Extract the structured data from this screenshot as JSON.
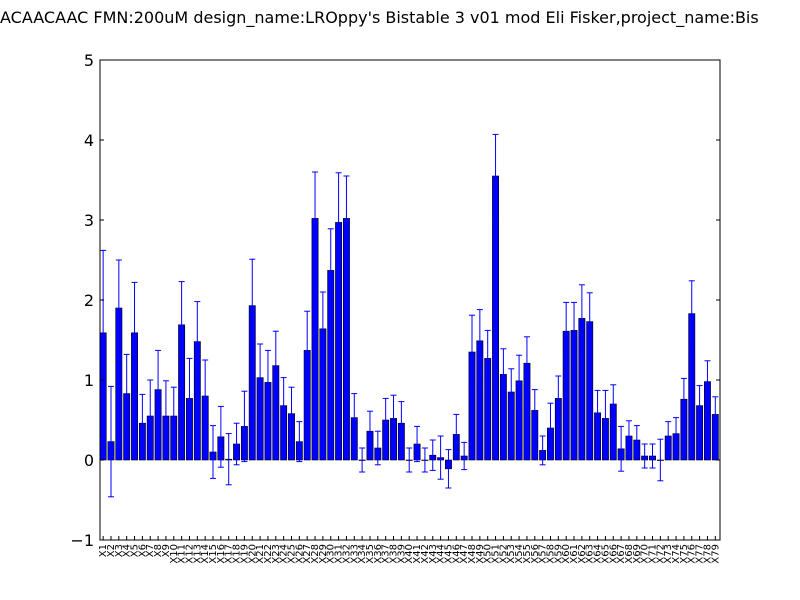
{
  "chart_data": {
    "type": "bar",
    "title": "ACAACAAC  FMN:200uM  design_name:LROppy's Bistable 3 v01 mod Eli Fisker,project_name:Bis",
    "xlabel": "",
    "ylabel": "",
    "ylim": [
      -1,
      5
    ],
    "yticks": [
      -1,
      0,
      1,
      2,
      3,
      4,
      5
    ],
    "grid": false,
    "bar_color": "#0000ff",
    "error_color": "#0000ff",
    "categories": [
      "X1",
      "X2",
      "X3",
      "X4",
      "X5",
      "X6",
      "X7",
      "X8",
      "X9",
      "X10",
      "X11",
      "X12",
      "X13",
      "X14",
      "X15",
      "X16",
      "X17",
      "X18",
      "X19",
      "X20",
      "X21",
      "X22",
      "X23",
      "X24",
      "X25",
      "X26",
      "X27",
      "X28",
      "X29",
      "X30",
      "X31",
      "X32",
      "X33",
      "X34",
      "X35",
      "X36",
      "X37",
      "X38",
      "X39",
      "X40",
      "X41",
      "X42",
      "X43",
      "X44",
      "X45",
      "X46",
      "X47",
      "X48",
      "X49",
      "X50",
      "X51",
      "X52",
      "X53",
      "X54",
      "X55",
      "X56",
      "X57",
      "X58",
      "X59",
      "X60",
      "X61",
      "X62",
      "X63",
      "X64",
      "X65",
      "X66",
      "X67",
      "X68",
      "X69",
      "X70",
      "X71",
      "X72",
      "X73",
      "X74",
      "X75",
      "X76",
      "X77",
      "X78",
      "X79"
    ],
    "values": [
      1.59,
      0.23,
      1.9,
      0.83,
      1.59,
      0.46,
      0.55,
      0.88,
      0.55,
      0.55,
      1.69,
      0.77,
      1.48,
      0.8,
      0.1,
      0.29,
      0.01,
      0.2,
      0.42,
      1.93,
      1.03,
      0.97,
      1.18,
      0.68,
      0.58,
      0.23,
      1.37,
      3.02,
      1.64,
      2.37,
      2.97,
      3.02,
      0.53,
      0.0,
      0.36,
      0.15,
      0.5,
      0.52,
      0.46,
      0.0,
      0.2,
      0.0,
      0.06,
      0.03,
      -0.11,
      0.32,
      0.05,
      1.35,
      1.49,
      1.27,
      3.55,
      1.07,
      0.85,
      0.99,
      1.21,
      0.62,
      0.12,
      0.4,
      0.77,
      1.61,
      1.62,
      1.77,
      1.73,
      0.59,
      0.52,
      0.7,
      0.14,
      0.3,
      0.25,
      0.05,
      0.05,
      0.0,
      0.3,
      0.33,
      0.76,
      1.83,
      0.68,
      0.98,
      0.57
    ],
    "errors": [
      1.03,
      0.69,
      0.6,
      0.49,
      0.63,
      0.36,
      0.45,
      0.49,
      0.44,
      0.36,
      0.54,
      0.5,
      0.5,
      0.45,
      0.33,
      0.38,
      0.32,
      0.26,
      0.44,
      0.58,
      0.42,
      0.4,
      0.43,
      0.35,
      0.33,
      0.25,
      0.49,
      0.58,
      0.46,
      0.52,
      0.62,
      0.53,
      0.3,
      0.15,
      0.25,
      0.21,
      0.27,
      0.29,
      0.27,
      0.15,
      0.22,
      0.15,
      0.19,
      0.27,
      0.24,
      0.25,
      0.17,
      0.46,
      0.39,
      0.35,
      0.52,
      0.32,
      0.29,
      0.32,
      0.33,
      0.26,
      0.18,
      0.31,
      0.28,
      0.36,
      0.35,
      0.42,
      0.36,
      0.28,
      0.35,
      0.24,
      0.28,
      0.19,
      0.18,
      0.15,
      0.15,
      0.26,
      0.18,
      0.2,
      0.26,
      0.41,
      0.25,
      0.26,
      0.22
    ]
  }
}
